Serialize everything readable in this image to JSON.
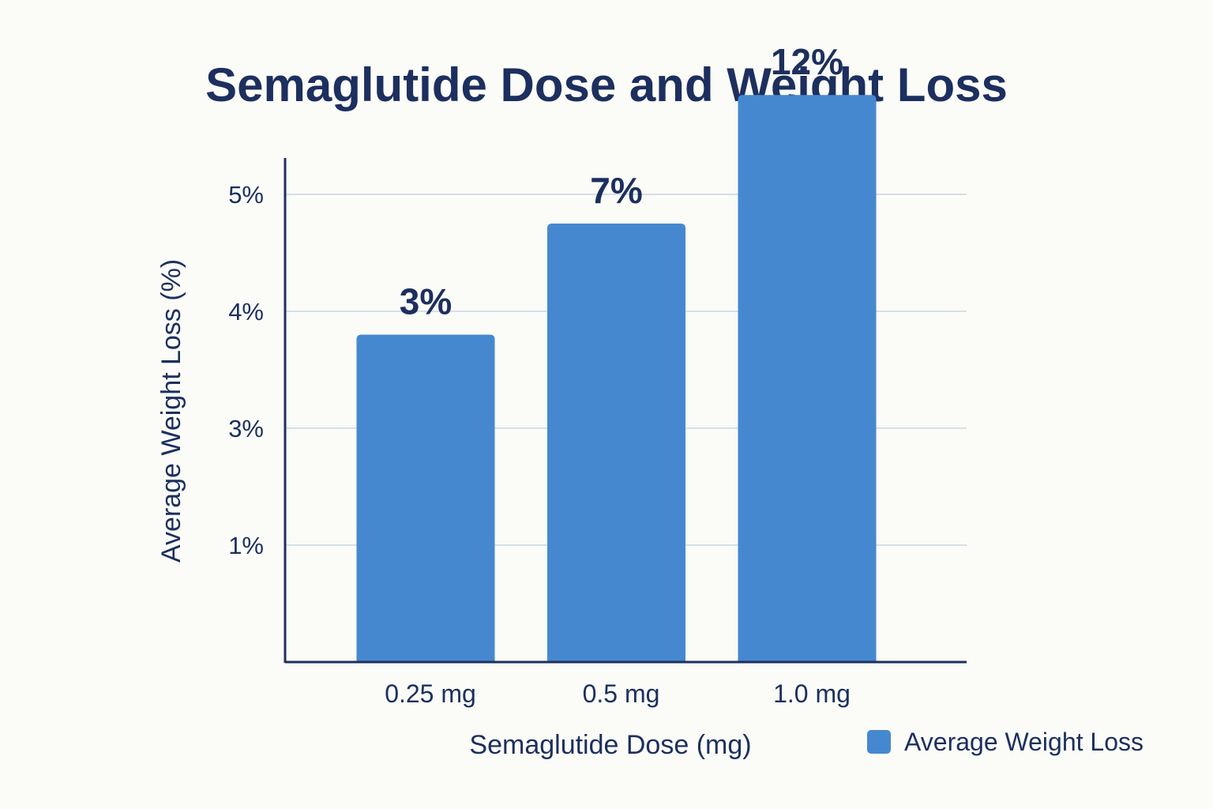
{
  "chart_data": {
    "type": "bar",
    "title": "Semaglutide Dose and Weight Loss",
    "xlabel": "Semaglutide Dose (mg)",
    "ylabel": "Average Weight Loss (%)",
    "categories": [
      "0.25 mg",
      "0.5 mg",
      "1.0 mg"
    ],
    "series": [
      {
        "name": "Average Weight Loss",
        "values": [
          3,
          7,
          12
        ],
        "data_labels": [
          "3%",
          "7%",
          "12%"
        ],
        "bar_heights_on_axis": [
          2.8,
          3.75,
          4.85
        ]
      }
    ],
    "y_axis": {
      "ticks": [
        1,
        3,
        4,
        5
      ],
      "tick_labels": [
        "1%",
        "3%",
        "4%",
        "5%"
      ],
      "tick_display_positions": [
        1,
        2,
        3,
        4
      ],
      "range": [
        0,
        4.9
      ]
    },
    "grid": true,
    "legend": {
      "position": "bottom-right",
      "entries": [
        "Average Weight Loss"
      ]
    },
    "colors": {
      "bar": "#4688cf",
      "text": "#1c2f5e",
      "grid": "#d6dfe8",
      "axis": "#1c2f5e",
      "background": "#fbfbf8"
    }
  }
}
